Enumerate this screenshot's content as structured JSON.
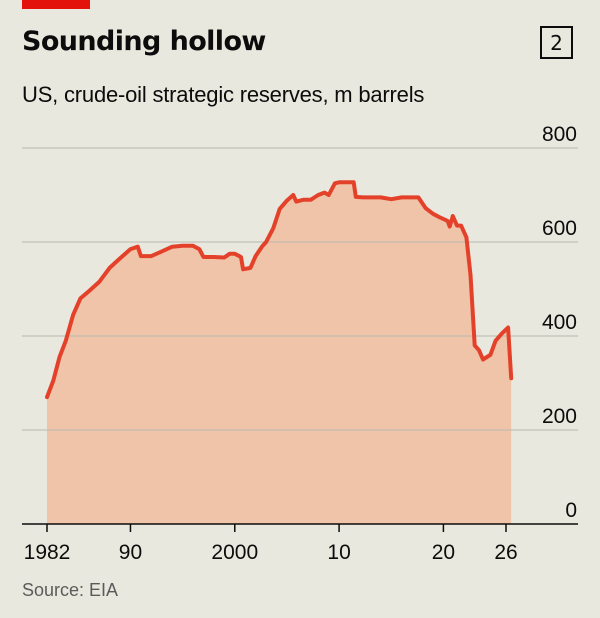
{
  "header": {
    "title": "Sounding hollow",
    "badge": "2",
    "subtitle": "US, crude-oil strategic reserves, m barrels"
  },
  "footer": {
    "source": "Source: EIA"
  },
  "colors": {
    "accent": "#e3120b",
    "line": "#e4412b",
    "area": "#f0c4a8",
    "grid": "#b7b7b0",
    "background": "#e9e8de"
  },
  "chart_data": {
    "type": "area",
    "title": "Sounding hollow",
    "subtitle": "US, crude-oil strategic reserves, m barrels",
    "xlabel": "",
    "ylabel": "",
    "xlim": [
      1982,
      2027
    ],
    "ylim": [
      0,
      800
    ],
    "yticks": [
      0,
      200,
      400,
      600,
      800
    ],
    "xticks": [
      {
        "value": 1982,
        "label": "1982"
      },
      {
        "value": 1990,
        "label": "90"
      },
      {
        "value": 2000,
        "label": "2000"
      },
      {
        "value": 2010,
        "label": "10"
      },
      {
        "value": 2020,
        "label": "20"
      },
      {
        "value": 2026,
        "label": "26"
      }
    ],
    "grid": true,
    "series": [
      {
        "x": [
          1982.0,
          1982.6,
          1983.2,
          1983.8,
          1984.5,
          1985.2,
          1986.0,
          1987.0,
          1988.0,
          1989.0,
          1990.0,
          1990.7,
          1991.0,
          1992.0,
          1993.0,
          1994.0,
          1995.0,
          1996.0,
          1996.6,
          1997.0,
          1998.0,
          1999.0,
          1999.5,
          2000.0,
          2000.6,
          2000.8,
          2001.5,
          2002.0,
          2002.6,
          2003.0,
          2003.7,
          2004.3,
          2005.0,
          2005.6,
          2005.9,
          2006.6,
          2007.3,
          2008.0,
          2008.6,
          2009.0,
          2009.6,
          2010.0,
          2010.6,
          2011.4,
          2011.6,
          2012.3,
          2013.0,
          2014.0,
          2015.0,
          2016.0,
          2017.0,
          2017.6,
          2018.3,
          2019.0,
          2019.7,
          2020.4,
          2020.6,
          2020.9,
          2021.3,
          2021.7,
          2022.2,
          2022.6,
          2023.0,
          2023.4,
          2023.8,
          2024.5,
          2025.0,
          2025.6,
          2026.2,
          2026.5
        ],
        "values": [
          270,
          305,
          355,
          390,
          445,
          480,
          495,
          515,
          545,
          565,
          585,
          590,
          570,
          570,
          580,
          590,
          592,
          592,
          585,
          568,
          568,
          567,
          575,
          575,
          568,
          542,
          545,
          570,
          590,
          600,
          630,
          670,
          688,
          700,
          686,
          690,
          690,
          700,
          705,
          700,
          725,
          727,
          727,
          727,
          696,
          695,
          695,
          695,
          691,
          695,
          695,
          695,
          672,
          660,
          652,
          645,
          633,
          655,
          635,
          635,
          610,
          530,
          380,
          370,
          350,
          360,
          390,
          405,
          418,
          310
        ]
      }
    ]
  }
}
